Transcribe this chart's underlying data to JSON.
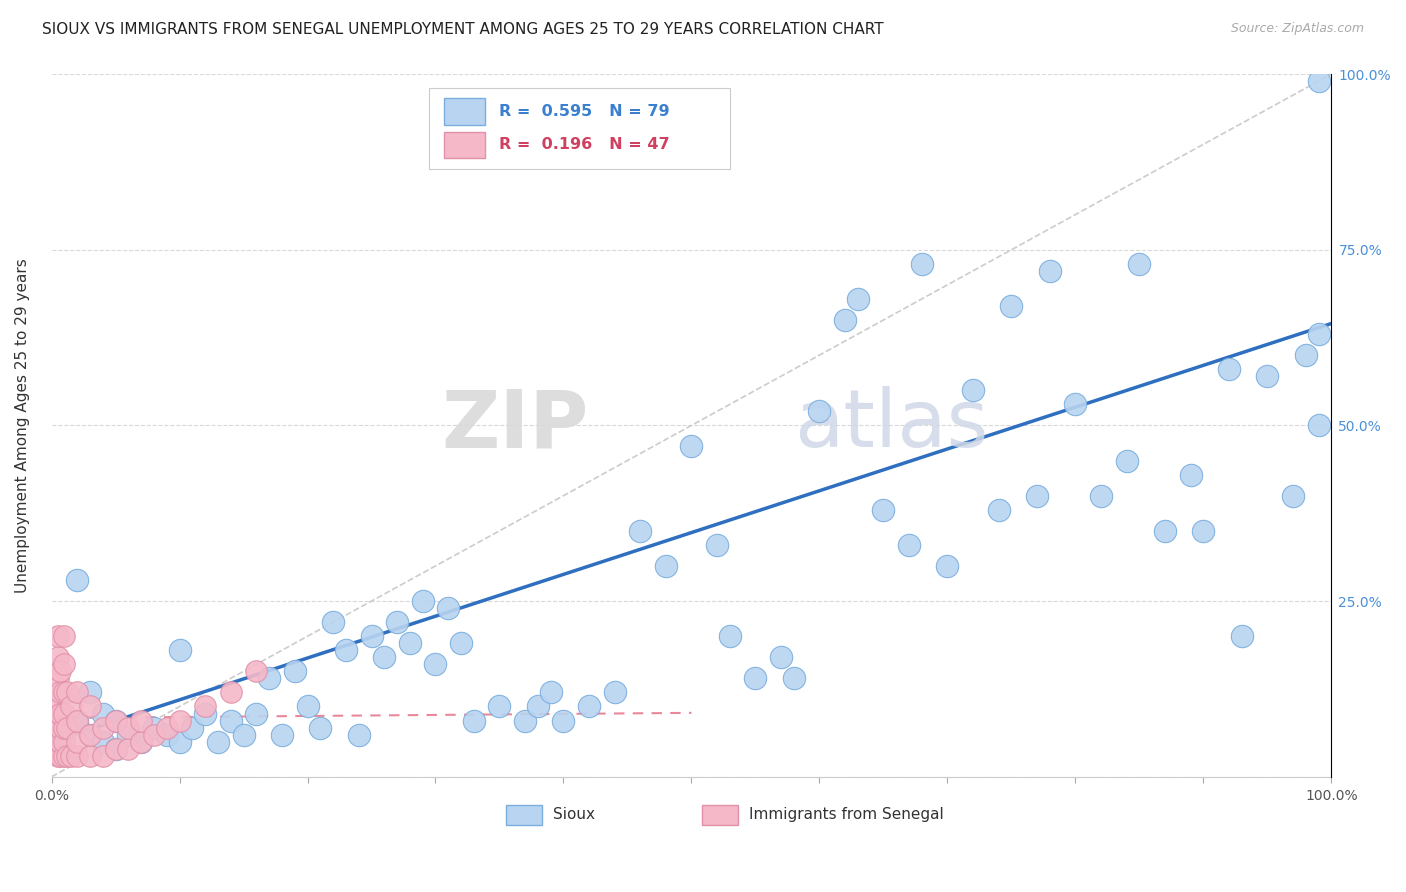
{
  "title": "SIOUX VS IMMIGRANTS FROM SENEGAL UNEMPLOYMENT AMONG AGES 25 TO 29 YEARS CORRELATION CHART",
  "source": "Source: ZipAtlas.com",
  "ylabel": "Unemployment Among Ages 25 to 29 years",
  "xlim": [
    0,
    1
  ],
  "ylim": [
    0,
    1
  ],
  "sioux_label": "Sioux",
  "senegal_label": "Immigrants from Senegal",
  "sioux_color": "#b8d4f0",
  "senegal_color": "#f5b8c8",
  "sioux_edge_color": "#7aaede",
  "senegal_edge_color": "#e090a8",
  "sioux_line_color": "#2e6fc0",
  "senegal_line_color": "#e8889a",
  "ref_line_color": "#cccccc",
  "background_color": "#ffffff",
  "watermark_zip": "ZIP",
  "watermark_atlas": "atlas",
  "sioux_R": 0.595,
  "sioux_N": 79,
  "senegal_R": 0.196,
  "senegal_N": 47,
  "sioux_line_x0": 0.0,
  "sioux_line_y0": 0.05,
  "sioux_line_x1": 1.0,
  "sioux_line_y1": 0.645,
  "sioux_x": [
    0.02,
    0.02,
    0.03,
    0.03,
    0.04,
    0.04,
    0.05,
    0.05,
    0.06,
    0.07,
    0.08,
    0.09,
    0.1,
    0.1,
    0.11,
    0.12,
    0.13,
    0.14,
    0.15,
    0.16,
    0.17,
    0.18,
    0.19,
    0.2,
    0.21,
    0.22,
    0.23,
    0.24,
    0.25,
    0.26,
    0.27,
    0.28,
    0.29,
    0.3,
    0.31,
    0.32,
    0.33,
    0.35,
    0.37,
    0.38,
    0.39,
    0.4,
    0.42,
    0.44,
    0.46,
    0.48,
    0.5,
    0.52,
    0.53,
    0.55,
    0.57,
    0.58,
    0.6,
    0.62,
    0.63,
    0.65,
    0.67,
    0.68,
    0.7,
    0.72,
    0.74,
    0.75,
    0.77,
    0.78,
    0.8,
    0.82,
    0.84,
    0.85,
    0.87,
    0.89,
    0.9,
    0.92,
    0.93,
    0.95,
    0.97,
    0.98,
    0.99,
    0.99,
    0.99
  ],
  "sioux_y": [
    0.28,
    0.08,
    0.12,
    0.06,
    0.09,
    0.05,
    0.08,
    0.04,
    0.06,
    0.05,
    0.07,
    0.06,
    0.18,
    0.05,
    0.07,
    0.09,
    0.05,
    0.08,
    0.06,
    0.09,
    0.14,
    0.06,
    0.15,
    0.1,
    0.07,
    0.22,
    0.18,
    0.06,
    0.2,
    0.17,
    0.22,
    0.19,
    0.25,
    0.16,
    0.24,
    0.19,
    0.08,
    0.1,
    0.08,
    0.1,
    0.12,
    0.08,
    0.1,
    0.12,
    0.35,
    0.3,
    0.47,
    0.33,
    0.2,
    0.14,
    0.17,
    0.14,
    0.52,
    0.65,
    0.68,
    0.38,
    0.33,
    0.73,
    0.3,
    0.55,
    0.38,
    0.67,
    0.4,
    0.72,
    0.53,
    0.4,
    0.45,
    0.73,
    0.35,
    0.43,
    0.35,
    0.58,
    0.2,
    0.57,
    0.4,
    0.6,
    0.63,
    0.5,
    0.99
  ],
  "senegal_x": [
    0.005,
    0.005,
    0.005,
    0.005,
    0.005,
    0.005,
    0.005,
    0.005,
    0.007,
    0.007,
    0.007,
    0.007,
    0.007,
    0.007,
    0.01,
    0.01,
    0.01,
    0.01,
    0.01,
    0.01,
    0.01,
    0.012,
    0.012,
    0.012,
    0.015,
    0.015,
    0.02,
    0.02,
    0.02,
    0.02,
    0.03,
    0.03,
    0.03,
    0.04,
    0.04,
    0.05,
    0.05,
    0.06,
    0.06,
    0.07,
    0.07,
    0.08,
    0.09,
    0.1,
    0.12,
    0.14,
    0.16
  ],
  "senegal_y": [
    0.03,
    0.05,
    0.07,
    0.09,
    0.11,
    0.14,
    0.17,
    0.2,
    0.03,
    0.05,
    0.07,
    0.09,
    0.12,
    0.15,
    0.03,
    0.05,
    0.07,
    0.09,
    0.12,
    0.16,
    0.2,
    0.03,
    0.07,
    0.12,
    0.03,
    0.1,
    0.03,
    0.05,
    0.08,
    0.12,
    0.03,
    0.06,
    0.1,
    0.03,
    0.07,
    0.04,
    0.08,
    0.04,
    0.07,
    0.05,
    0.08,
    0.06,
    0.07,
    0.08,
    0.1,
    0.12,
    0.15
  ]
}
